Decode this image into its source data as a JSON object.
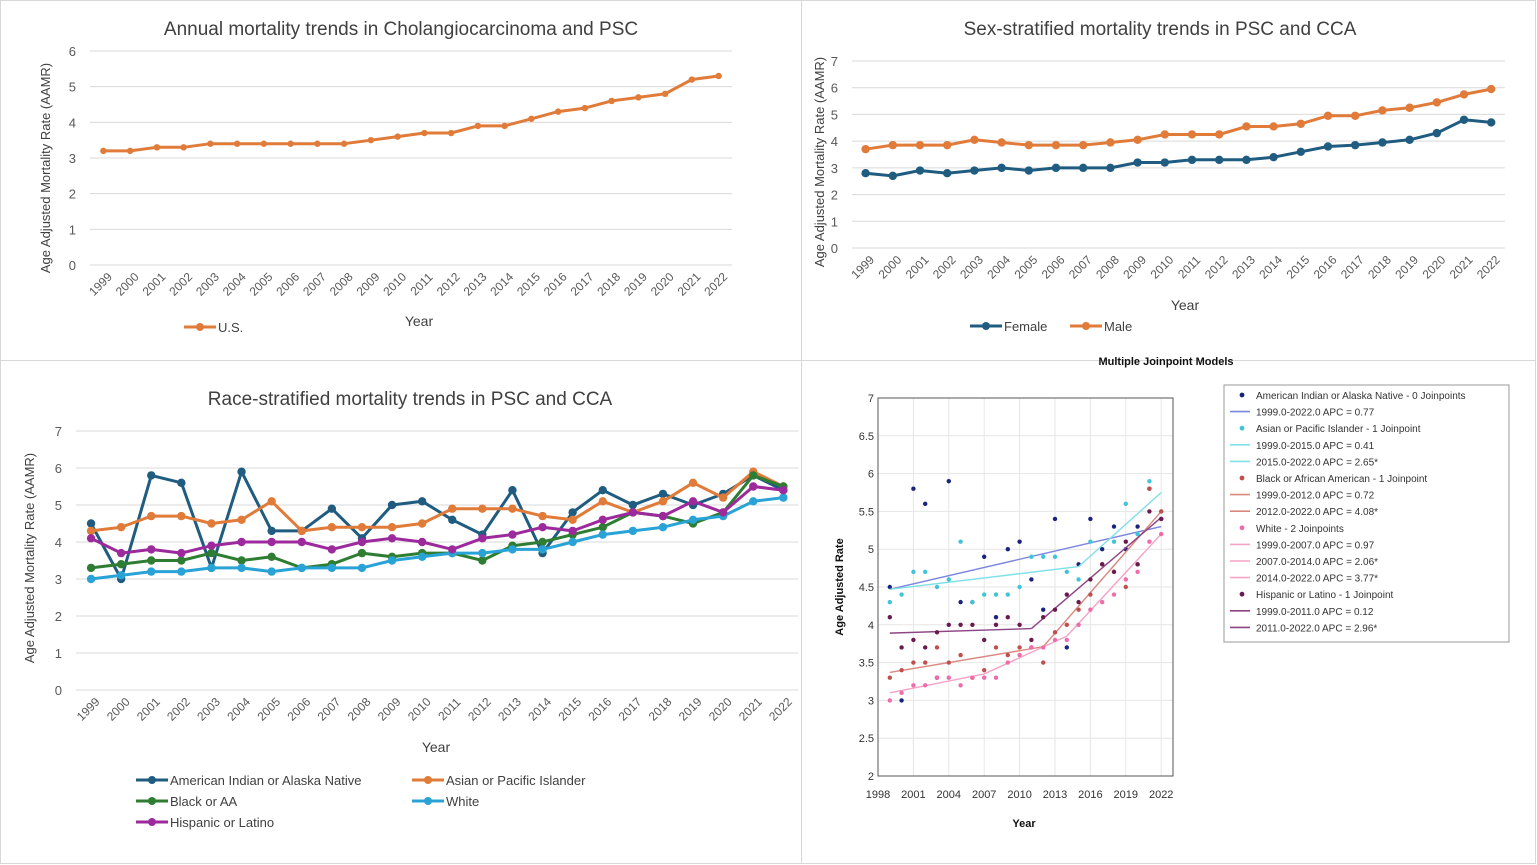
{
  "chart_data": [
    {
      "type": "line",
      "title": "Annual mortality trends in Cholangiocarcinoma and PSC",
      "xlabel": "Year",
      "ylabel": "Age Adjusted Mortality Rate (AAMR)",
      "ylim": [
        0,
        6
      ],
      "yticks": [
        0,
        1,
        2,
        3,
        4,
        5,
        6
      ],
      "grid": true,
      "legend_position": "bottom",
      "categories": [
        "1999",
        "2000",
        "2001",
        "2002",
        "2003",
        "2004",
        "2005",
        "2006",
        "2007",
        "2008",
        "2009",
        "2010",
        "2011",
        "2012",
        "2013",
        "2014",
        "2015",
        "2016",
        "2017",
        "2018",
        "2019",
        "2020",
        "2021",
        "2022"
      ],
      "series": [
        {
          "name": "U.S.",
          "color": "#E07B39",
          "values": [
            3.2,
            3.2,
            3.3,
            3.3,
            3.4,
            3.4,
            3.4,
            3.4,
            3.4,
            3.4,
            3.5,
            3.6,
            3.7,
            3.7,
            3.9,
            3.9,
            4.1,
            4.3,
            4.4,
            4.6,
            4.7,
            4.8,
            5.2,
            5.3
          ]
        }
      ]
    },
    {
      "type": "line",
      "title": "Sex-stratified mortality trends in PSC and CCA",
      "xlabel": "Year",
      "ylabel": "Age Adjusted Mortality Rate (AAMR)",
      "ylim": [
        0,
        7
      ],
      "yticks": [
        0,
        1,
        2,
        3,
        4,
        5,
        6,
        7
      ],
      "grid": true,
      "legend_position": "bottom",
      "categories": [
        "1999",
        "2000",
        "2001",
        "2002",
        "2003",
        "2004",
        "2005",
        "2006",
        "2007",
        "2008",
        "2009",
        "2010",
        "2011",
        "2012",
        "2013",
        "2014",
        "2015",
        "2016",
        "2017",
        "2018",
        "2019",
        "2020",
        "2021",
        "2022"
      ],
      "series": [
        {
          "name": "Female",
          "color": "#1F5C80",
          "values": [
            2.8,
            2.7,
            2.9,
            2.8,
            2.9,
            3.0,
            2.9,
            3.0,
            3.0,
            3.0,
            3.2,
            3.2,
            3.3,
            3.3,
            3.3,
            3.4,
            3.6,
            3.8,
            3.85,
            3.95,
            4.05,
            4.3,
            4.8,
            4.7
          ]
        },
        {
          "name": "Male",
          "color": "#E07B39",
          "values": [
            3.7,
            3.85,
            3.85,
            3.85,
            4.05,
            3.95,
            3.85,
            3.85,
            3.85,
            3.95,
            4.05,
            4.25,
            4.25,
            4.25,
            4.55,
            4.55,
            4.65,
            4.95,
            4.95,
            5.15,
            5.25,
            5.45,
            5.75,
            5.95
          ]
        }
      ]
    },
    {
      "type": "line",
      "title": "Race-stratified mortality trends in PSC and CCA",
      "xlabel": "Year",
      "ylabel": "Age Adjusted Mortality Rate (AAMR)",
      "ylim": [
        0,
        7
      ],
      "yticks": [
        0,
        1,
        2,
        3,
        4,
        5,
        6,
        7
      ],
      "grid": true,
      "legend_position": "bottom",
      "categories": [
        "1999",
        "2000",
        "2001",
        "2002",
        "2003",
        "2004",
        "2005",
        "2006",
        "2007",
        "2008",
        "2009",
        "2010",
        "2011",
        "2012",
        "2013",
        "2014",
        "2015",
        "2016",
        "2017",
        "2018",
        "2019",
        "2020",
        "2021",
        "2022"
      ],
      "series": [
        {
          "name": "American Indian or Alaska Native",
          "color": "#1F5C80",
          "values": [
            4.5,
            3.0,
            5.8,
            5.6,
            3.3,
            5.9,
            4.3,
            4.3,
            4.9,
            4.1,
            5.0,
            5.1,
            4.6,
            4.2,
            5.4,
            3.7,
            4.8,
            5.4,
            5.0,
            5.3,
            5.0,
            5.3,
            5.8,
            5.4
          ]
        },
        {
          "name": "Asian or Pacific Islander",
          "color": "#E07B39",
          "values": [
            4.3,
            4.4,
            4.7,
            4.7,
            4.5,
            4.6,
            5.1,
            4.3,
            4.4,
            4.4,
            4.4,
            4.5,
            4.9,
            4.9,
            4.9,
            4.7,
            4.6,
            5.1,
            4.8,
            5.1,
            5.6,
            5.2,
            5.9,
            5.5
          ]
        },
        {
          "name": "Black or AA",
          "color": "#2E7D32",
          "values": [
            3.3,
            3.4,
            3.5,
            3.5,
            3.7,
            3.5,
            3.6,
            3.3,
            3.4,
            3.7,
            3.6,
            3.7,
            3.7,
            3.5,
            3.9,
            4.0,
            4.2,
            4.4,
            4.8,
            4.7,
            4.5,
            4.8,
            5.8,
            5.5
          ]
        },
        {
          "name": "White",
          "color": "#29A3D6",
          "values": [
            3.0,
            3.1,
            3.2,
            3.2,
            3.3,
            3.3,
            3.2,
            3.3,
            3.3,
            3.3,
            3.5,
            3.6,
            3.7,
            3.7,
            3.8,
            3.8,
            4.0,
            4.2,
            4.3,
            4.4,
            4.6,
            4.7,
            5.1,
            5.2
          ]
        },
        {
          "name": "Hispanic or Latino",
          "color": "#9C2A9C",
          "values": [
            4.1,
            3.7,
            3.8,
            3.7,
            3.9,
            4.0,
            4.0,
            4.0,
            3.8,
            4.0,
            4.1,
            4.0,
            3.8,
            4.1,
            4.2,
            4.4,
            4.3,
            4.6,
            4.8,
            4.7,
            5.1,
            4.8,
            5.5,
            5.4
          ]
        }
      ]
    },
    {
      "type": "scatter",
      "title": "Multiple Joinpoint Models",
      "xlabel": "Year",
      "ylabel": "Age Adjusted Rate",
      "xlim": [
        1998,
        2023
      ],
      "ylim": [
        2,
        7
      ],
      "xticks": [
        1998,
        2001,
        2004,
        2007,
        2010,
        2013,
        2016,
        2019,
        2022
      ],
      "yticks": [
        "2",
        "2.5",
        "3",
        "3.5",
        "4",
        "4.5",
        "5",
        "5.5",
        "6",
        "6.5",
        "7"
      ],
      "grid": true,
      "legend_position": "right",
      "series": [
        {
          "name": "American Indian or Alaska Native - 0 Joinpoints",
          "color": "#1A237E",
          "points": [
            [
              1999,
              4.5
            ],
            [
              2000,
              3.0
            ],
            [
              2001,
              5.8
            ],
            [
              2002,
              5.6
            ],
            [
              2003,
              3.3
            ],
            [
              2004,
              5.9
            ],
            [
              2005,
              4.3
            ],
            [
              2006,
              4.3
            ],
            [
              2007,
              4.9
            ],
            [
              2008,
              4.1
            ],
            [
              2009,
              5.0
            ],
            [
              2010,
              5.1
            ],
            [
              2011,
              4.6
            ],
            [
              2012,
              4.2
            ],
            [
              2013,
              5.4
            ],
            [
              2014,
              3.7
            ],
            [
              2015,
              4.8
            ],
            [
              2016,
              5.4
            ],
            [
              2017,
              5.0
            ],
            [
              2018,
              5.3
            ],
            [
              2019,
              5.0
            ],
            [
              2020,
              5.3
            ],
            [
              2021,
              5.8
            ],
            [
              2022,
              5.4
            ]
          ],
          "segments": [
            {
              "label": "1999.0-2022.0 APC = 0.77",
              "color": "#7B86E0",
              "x0": 1999,
              "y0": 4.47,
              "x1": 2022,
              "y1": 5.3
            }
          ]
        },
        {
          "name": "Asian or Pacific Islander - 1 Joinpoint",
          "color": "#40C4D8",
          "points": [
            [
              1999,
              4.3
            ],
            [
              2000,
              4.4
            ],
            [
              2001,
              4.7
            ],
            [
              2002,
              4.7
            ],
            [
              2003,
              4.5
            ],
            [
              2004,
              4.6
            ],
            [
              2005,
              5.1
            ],
            [
              2006,
              4.3
            ],
            [
              2007,
              4.4
            ],
            [
              2008,
              4.4
            ],
            [
              2009,
              4.4
            ],
            [
              2010,
              4.5
            ],
            [
              2011,
              4.9
            ],
            [
              2012,
              4.9
            ],
            [
              2013,
              4.9
            ],
            [
              2014,
              4.7
            ],
            [
              2015,
              4.6
            ],
            [
              2016,
              5.1
            ],
            [
              2017,
              4.8
            ],
            [
              2018,
              5.1
            ],
            [
              2019,
              5.6
            ],
            [
              2020,
              5.2
            ],
            [
              2021,
              5.9
            ],
            [
              2022,
              5.5
            ]
          ],
          "segments": [
            {
              "label": "1999.0-2015.0 APC = 0.41",
              "color": "#7FE0E8",
              "x0": 1999,
              "y0": 4.47,
              "x1": 2015,
              "y1": 4.77
            },
            {
              "label": "2015.0-2022.0 APC = 2.65*",
              "color": "#7FE0E8",
              "x0": 2015,
              "y0": 4.77,
              "x1": 2022,
              "y1": 5.75
            }
          ]
        },
        {
          "name": "Black or African American - 1 Joinpoint",
          "color": "#C0504D",
          "points": [
            [
              1999,
              3.3
            ],
            [
              2000,
              3.4
            ],
            [
              2001,
              3.5
            ],
            [
              2002,
              3.5
            ],
            [
              2003,
              3.7
            ],
            [
              2004,
              3.5
            ],
            [
              2005,
              3.6
            ],
            [
              2006,
              3.3
            ],
            [
              2007,
              3.4
            ],
            [
              2008,
              3.7
            ],
            [
              2009,
              3.6
            ],
            [
              2010,
              3.7
            ],
            [
              2011,
              3.7
            ],
            [
              2012,
              3.5
            ],
            [
              2013,
              3.9
            ],
            [
              2014,
              4.0
            ],
            [
              2015,
              4.2
            ],
            [
              2016,
              4.4
            ],
            [
              2017,
              4.8
            ],
            [
              2018,
              4.7
            ],
            [
              2019,
              4.5
            ],
            [
              2020,
              4.8
            ],
            [
              2021,
              5.8
            ],
            [
              2022,
              5.5
            ]
          ],
          "segments": [
            {
              "label": "1999.0-2012.0 APC = 0.72",
              "color": "#D9897F",
              "x0": 1999,
              "y0": 3.37,
              "x1": 2012,
              "y1": 3.71
            },
            {
              "label": "2012.0-2022.0 APC = 4.08*",
              "color": "#D9897F",
              "x0": 2012,
              "y0": 3.71,
              "x1": 2022,
              "y1": 5.5
            }
          ]
        },
        {
          "name": "White - 2 Joinpoints",
          "color": "#F06BAA",
          "points": [
            [
              1999,
              3.0
            ],
            [
              2000,
              3.1
            ],
            [
              2001,
              3.2
            ],
            [
              2002,
              3.2
            ],
            [
              2003,
              3.3
            ],
            [
              2004,
              3.3
            ],
            [
              2005,
              3.2
            ],
            [
              2006,
              3.3
            ],
            [
              2007,
              3.3
            ],
            [
              2008,
              3.3
            ],
            [
              2009,
              3.5
            ],
            [
              2010,
              3.6
            ],
            [
              2011,
              3.7
            ],
            [
              2012,
              3.7
            ],
            [
              2013,
              3.8
            ],
            [
              2014,
              3.8
            ],
            [
              2015,
              4.0
            ],
            [
              2016,
              4.2
            ],
            [
              2017,
              4.3
            ],
            [
              2018,
              4.4
            ],
            [
              2019,
              4.6
            ],
            [
              2020,
              4.7
            ],
            [
              2021,
              5.1
            ],
            [
              2022,
              5.2
            ]
          ],
          "segments": [
            {
              "label": "1999.0-2007.0 APC = 0.97",
              "color": "#F5A3C7",
              "x0": 1999,
              "y0": 3.1,
              "x1": 2007,
              "y1": 3.35
            },
            {
              "label": "2007.0-2014.0 APC = 2.06*",
              "color": "#F5A3C7",
              "x0": 2007,
              "y0": 3.35,
              "x1": 2014,
              "y1": 3.85
            },
            {
              "label": "2014.0-2022.0 APC = 3.77*",
              "color": "#F5A3C7",
              "x0": 2014,
              "y0": 3.85,
              "x1": 2022,
              "y1": 5.2
            }
          ]
        },
        {
          "name": "Hispanic or Latino - 1 Joinpoint",
          "color": "#6A1B4D",
          "points": [
            [
              1999,
              4.1
            ],
            [
              2000,
              3.7
            ],
            [
              2001,
              3.8
            ],
            [
              2002,
              3.7
            ],
            [
              2003,
              3.9
            ],
            [
              2004,
              4.0
            ],
            [
              2005,
              4.0
            ],
            [
              2006,
              4.0
            ],
            [
              2007,
              3.8
            ],
            [
              2008,
              4.0
            ],
            [
              2009,
              4.1
            ],
            [
              2010,
              4.0
            ],
            [
              2011,
              3.8
            ],
            [
              2012,
              4.1
            ],
            [
              2013,
              4.2
            ],
            [
              2014,
              4.4
            ],
            [
              2015,
              4.3
            ],
            [
              2016,
              4.6
            ],
            [
              2017,
              4.8
            ],
            [
              2018,
              4.7
            ],
            [
              2019,
              5.1
            ],
            [
              2020,
              4.8
            ],
            [
              2021,
              5.5
            ],
            [
              2022,
              5.4
            ]
          ],
          "segments": [
            {
              "label": "1999.0-2011.0 APC = 0.12",
              "color": "#8E4585",
              "x0": 1999,
              "y0": 3.89,
              "x1": 2011,
              "y1": 3.95
            },
            {
              "label": "2011.0-2022.0 APC = 2.96*",
              "color": "#8E4585",
              "x0": 2011,
              "y0": 3.95,
              "x1": 2022,
              "y1": 5.42
            }
          ]
        }
      ]
    }
  ]
}
